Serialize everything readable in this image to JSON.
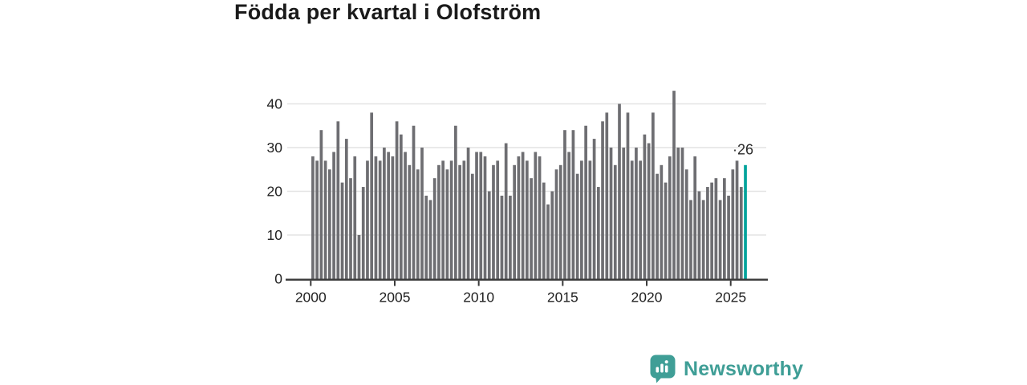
{
  "title": "Födda per kvartal i Olofström",
  "chart_data": {
    "type": "bar",
    "title": "Födda per kvartal i Olofström",
    "frequency": "quarterly",
    "start": "2000-Q1",
    "end": "2025-Q4",
    "start_year": 2000,
    "values": [
      28,
      27,
      34,
      27,
      25,
      29,
      36,
      22,
      32,
      23,
      28,
      10,
      21,
      27,
      38,
      28,
      27,
      30,
      29,
      28,
      36,
      33,
      29,
      26,
      35,
      25,
      30,
      19,
      18,
      23,
      26,
      27,
      25,
      27,
      35,
      26,
      27,
      30,
      24,
      29,
      29,
      28,
      20,
      26,
      27,
      19,
      31,
      19,
      26,
      28,
      29,
      27,
      23,
      29,
      28,
      22,
      17,
      20,
      25,
      26,
      34,
      29,
      34,
      24,
      27,
      35,
      27,
      32,
      21,
      36,
      38,
      30,
      26,
      40,
      30,
      38,
      27,
      30,
      27,
      33,
      31,
      38,
      24,
      26,
      22,
      28,
      43,
      30,
      30,
      25,
      18,
      28,
      20,
      18,
      21,
      22,
      23,
      18,
      23,
      19,
      25,
      27,
      21,
      26
    ],
    "highlight_last_bar": true,
    "last_value_label": "26",
    "label_leader_dot": "·",
    "xlabel": "",
    "ylabel": "",
    "ylim": [
      0,
      45
    ],
    "yticks": [
      0,
      10,
      20,
      30,
      40
    ],
    "xticks": [
      2000,
      2005,
      2010,
      2015,
      2020,
      2025
    ],
    "grid": "horizontal",
    "legend": "none"
  },
  "colors": {
    "bar": "#6e6e72",
    "highlight": "#00a39b",
    "grid": "#e3e3e3",
    "axis": "#3a3a3a",
    "tick_label": "#222222",
    "annotation": "#2b2b2b",
    "title": "#1a1a1a",
    "brand": "#3f9e96"
  },
  "branding": {
    "name": "Newsworthy"
  }
}
